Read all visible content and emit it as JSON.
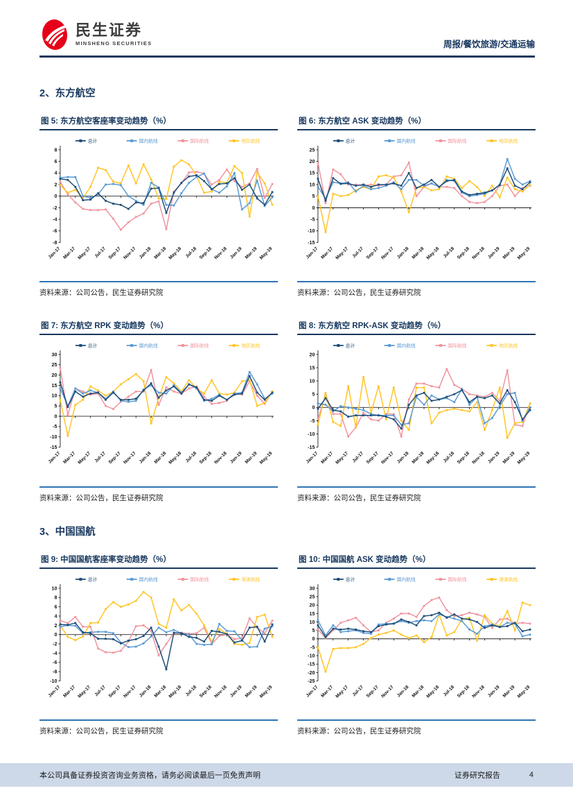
{
  "header": {
    "brand": "民生证券",
    "brand_sub": "MINSHENG SECURITIES",
    "tagline": "周报/餐饮旅游/交通运输"
  },
  "sections": [
    {
      "title": "2、东方航空"
    },
    {
      "title": "3、中国国航"
    }
  ],
  "source_label": "资料来源：公司公告，民生证券研究院",
  "footer": {
    "left": "本公司具备证券投资咨询业务资格，请务必阅读最后一页免责声明",
    "right": "证券研究报告",
    "page": "4"
  },
  "colors": {
    "accent_navy": "#17375E",
    "rule_blue": "#2E74B5",
    "logo_red": "#E60019",
    "footer_bg": "#CDD8E8"
  },
  "months": [
    "Jan-17",
    "Feb-17",
    "Mar-17",
    "Apr-17",
    "May-17",
    "Jun-17",
    "Jul-17",
    "Aug-17",
    "Sep-17",
    "Oct-17",
    "Nov-17",
    "Dec-17",
    "Jan-18",
    "Feb-18",
    "Mar-18",
    "Apr-18",
    "May-18",
    "Jun-18",
    "Jul-18",
    "Aug-18",
    "Sep-18",
    "Oct-18",
    "Nov-18",
    "Dec-18",
    "Jan-19",
    "Feb-19",
    "Mar-19",
    "Apr-19",
    "May-19"
  ],
  "x_tick_labels": [
    "Jan-17",
    "Mar-17",
    "May-17",
    "Jul-17",
    "Sep-17",
    "Nov-17",
    "Jan-18",
    "Mar-18",
    "May-18",
    "Jul-18",
    "Sep-18",
    "Nov-18",
    "Jan-19",
    "Mar-19",
    "May-19"
  ],
  "chart_data": [
    {
      "type": "line",
      "title": "图 5: 东方航空客座率变动趋势（%）",
      "ylim": [
        -8,
        8
      ],
      "ytick_step": 2,
      "grid": false,
      "legend_position": "top",
      "series": [
        {
          "name": "总计",
          "color": "#1F4E79",
          "values": [
            3.0,
            2.8,
            1.6,
            -0.7,
            -0.6,
            0.5,
            -0.8,
            -1.3,
            -1.5,
            -2.2,
            -1.1,
            -1.2,
            1.3,
            1.4,
            -2.9,
            0.6,
            2.3,
            3.4,
            3.6,
            2.6,
            1.2,
            2.1,
            2.2,
            3.1,
            1.1,
            2.0,
            -0.4,
            -1.5,
            0.7
          ]
        },
        {
          "name": "国内航线",
          "color": "#5B9BD5",
          "values": [
            3.2,
            3.3,
            3.3,
            0.0,
            -0.3,
            0.3,
            2.0,
            2.1,
            1.9,
            0.0,
            -0.8,
            -1.5,
            2.3,
            1.5,
            -1.5,
            -1.6,
            0.5,
            2.3,
            3.3,
            3.9,
            1.2,
            0.6,
            1.7,
            4.0,
            -2.3,
            -1.2,
            2.7,
            -1.7,
            -0.2
          ]
        },
        {
          "name": "国际航线",
          "color": "#F1949E",
          "values": [
            2.5,
            0.3,
            -1.1,
            -2.2,
            -2.4,
            -2.4,
            -2.3,
            -3.9,
            -5.8,
            -4.5,
            -3.6,
            -3.0,
            -1.3,
            -0.9,
            -5.7,
            0.8,
            2.2,
            4.1,
            4.2,
            3.9,
            2.0,
            2.8,
            4.6,
            2.6,
            1.6,
            2.2,
            4.7,
            -0.3,
            2.1
          ]
        },
        {
          "name": "地区航线",
          "color": "#FFC527",
          "values": [
            1.9,
            0.6,
            1.1,
            -0.3,
            1.6,
            4.9,
            4.5,
            2.5,
            2.2,
            5.3,
            2.2,
            5.5,
            2.9,
            -0.4,
            -0.5,
            5.1,
            6.2,
            5.5,
            3.5,
            0.6,
            0.8,
            2.5,
            2.3,
            5.2,
            4.0,
            -3.5,
            4.1,
            2.2,
            -1.5
          ]
        }
      ]
    },
    {
      "type": "line",
      "title": "图 6: 东方航空 ASK 变动趋势（%）",
      "ylim": [
        -15,
        25
      ],
      "ytick_step": 5,
      "grid": false,
      "legend_position": "top",
      "series": [
        {
          "name": "总计",
          "color": "#1F4E79",
          "values": [
            12.5,
            3.0,
            12.8,
            10.3,
            10.5,
            9.5,
            10.0,
            9.0,
            10.0,
            10.0,
            10.5,
            9.5,
            15.0,
            8.5,
            10.0,
            12.0,
            9.0,
            11.5,
            12.0,
            7.0,
            5.5,
            6.0,
            6.5,
            7.5,
            9.8,
            17.0,
            9.5,
            8.0,
            11.0
          ]
        },
        {
          "name": "国内航线",
          "color": "#5B9BD5",
          "values": [
            9.0,
            4.0,
            11.0,
            10.5,
            11.0,
            7.0,
            9.5,
            8.0,
            8.5,
            9.5,
            11.0,
            8.0,
            12.0,
            12.0,
            9.5,
            10.5,
            9.0,
            12.0,
            11.5,
            6.5,
            5.0,
            5.5,
            6.0,
            7.5,
            10.0,
            21.0,
            12.5,
            10.0,
            11.5
          ]
        },
        {
          "name": "国际航线",
          "color": "#F1949E",
          "values": [
            19.5,
            2.0,
            16.5,
            14.5,
            10.0,
            10.0,
            9.5,
            10.0,
            9.5,
            10.0,
            13.5,
            14.0,
            19.5,
            5.0,
            9.0,
            10.5,
            9.0,
            9.0,
            8.5,
            5.0,
            2.5,
            2.0,
            2.5,
            5.0,
            9.5,
            10.0,
            5.0,
            8.5,
            9.5
          ]
        },
        {
          "name": "地区航线",
          "color": "#FFC527",
          "values": [
            5.0,
            -10.5,
            6.0,
            5.0,
            5.5,
            7.5,
            9.0,
            8.0,
            13.5,
            14.0,
            13.0,
            7.0,
            -2.0,
            8.5,
            9.0,
            7.5,
            8.0,
            13.5,
            12.5,
            8.5,
            11.5,
            9.0,
            5.0,
            9.5,
            4.5,
            13.0,
            8.0,
            7.0,
            10.0
          ]
        }
      ]
    },
    {
      "type": "line",
      "title": "图 7: 东方航空 RPK 变动趋势（%）",
      "ylim": [
        -15,
        30
      ],
      "ytick_step": 5,
      "grid": false,
      "legend_position": "top",
      "series": [
        {
          "name": "总计",
          "color": "#1F4E79",
          "values": [
            16.5,
            4.5,
            12.0,
            9.5,
            11.0,
            11.5,
            8.0,
            11.5,
            8.0,
            8.0,
            8.5,
            12.5,
            16.0,
            9.0,
            12.5,
            14.5,
            11.0,
            15.5,
            14.0,
            8.0,
            7.5,
            10.0,
            8.0,
            10.5,
            11.0,
            19.5,
            11.5,
            8.0,
            11.5
          ]
        },
        {
          "name": "国内航线",
          "color": "#5B9BD5",
          "values": [
            13.5,
            5.0,
            13.5,
            11.0,
            12.5,
            11.5,
            8.5,
            12.0,
            7.5,
            7.0,
            7.5,
            13.0,
            15.0,
            11.5,
            11.0,
            15.0,
            11.5,
            15.5,
            13.5,
            7.5,
            8.5,
            10.5,
            8.0,
            11.0,
            11.5,
            21.5,
            15.5,
            8.5,
            11.0
          ]
        },
        {
          "name": "国际航线",
          "color": "#F1949E",
          "values": [
            23.5,
            0.5,
            13.5,
            12.0,
            10.5,
            11.0,
            5.0,
            3.5,
            7.0,
            9.5,
            12.0,
            12.0,
            22.5,
            5.5,
            14.0,
            12.0,
            11.0,
            13.5,
            14.5,
            9.5,
            6.0,
            6.5,
            7.5,
            11.5,
            10.5,
            17.0,
            10.0,
            6.0,
            12.0
          ]
        },
        {
          "name": "地区航线",
          "color": "#FFC527",
          "values": [
            8.0,
            -9.5,
            5.5,
            8.0,
            14.5,
            12.5,
            10.0,
            12.0,
            15.5,
            18.0,
            20.5,
            17.0,
            -3.5,
            9.0,
            19.0,
            16.0,
            12.0,
            17.5,
            13.5,
            11.0,
            17.5,
            11.0,
            10.5,
            11.5,
            17.0,
            17.5,
            5.0,
            6.5,
            12.0
          ]
        }
      ]
    },
    {
      "type": "line",
      "title": "图 8: 东方航空 RPK-ASK 变动趋势（%）",
      "ylim": [
        -15,
        20
      ],
      "ytick_step": 5,
      "grid": false,
      "legend_position": "top",
      "series": [
        {
          "name": "总计",
          "color": "#1F4E79",
          "values": [
            -0.5,
            3.5,
            -1.0,
            -1.5,
            -3.5,
            -3.0,
            -3.0,
            -3.0,
            -3.0,
            -3.5,
            -4.5,
            -8.0,
            1.0,
            4.5,
            5.5,
            2.5,
            3.0,
            4.0,
            5.0,
            6.5,
            2.0,
            4.0,
            3.5,
            4.5,
            1.5,
            6.5,
            2.0,
            -4.5,
            -1.0
          ]
        },
        {
          "name": "国内航线",
          "color": "#5B9BD5",
          "values": [
            1.5,
            1.0,
            -1.5,
            0.5,
            0.0,
            -0.5,
            -1.0,
            -2.5,
            -3.0,
            -3.0,
            -3.0,
            -6.5,
            -6.0,
            4.0,
            1.0,
            4.5,
            3.0,
            3.5,
            2.0,
            7.0,
            1.0,
            4.0,
            -6.0,
            -4.0,
            0.5,
            5.0,
            5.5,
            -5.0,
            0.0
          ]
        },
        {
          "name": "国际航线",
          "color": "#F1949E",
          "values": [
            -4.5,
            5.0,
            -2.5,
            -2.5,
            -11.0,
            -7.5,
            -2.0,
            -4.5,
            -5.0,
            -2.5,
            -2.5,
            -11.0,
            3.0,
            9.0,
            9.0,
            8.0,
            7.5,
            14.5,
            8.5,
            7.0,
            5.0,
            4.5,
            4.0,
            5.5,
            2.5,
            14.0,
            -6.5,
            -7.0,
            1.5
          ]
        },
        {
          "name": "地区航线",
          "color": "#FFC527",
          "values": [
            -6.5,
            5.5,
            -5.5,
            -7.0,
            8.0,
            -7.5,
            11.5,
            -2.0,
            8.0,
            -4.5,
            7.5,
            -5.0,
            -8.5,
            7.5,
            7.5,
            -6.0,
            -2.0,
            -1.0,
            -0.5,
            -1.0,
            -1.5,
            2.0,
            -8.5,
            -1.0,
            7.5,
            -11.5,
            -6.0,
            -5.5,
            1.5
          ]
        }
      ]
    },
    {
      "type": "line",
      "title": "图 9: 中国国航客座率变动趋势（%）",
      "ylim": [
        -10,
        10
      ],
      "ytick_step": 2,
      "grid": false,
      "legend_position": "top",
      "series": [
        {
          "name": "总计",
          "color": "#1F4E79",
          "values": [
            2.2,
            2.1,
            2.5,
            0.5,
            0.3,
            -0.9,
            -0.9,
            -1.0,
            -1.9,
            -1.3,
            -1.0,
            -0.3,
            1.5,
            -2.6,
            -7.5,
            0.4,
            0.3,
            -0.5,
            -0.7,
            -1.5,
            0.8,
            0.6,
            0.1,
            -1.7,
            -1.3,
            1.5,
            1.7,
            -1.5,
            2.2
          ]
        },
        {
          "name": "国内航线",
          "color": "#5B9BD5",
          "values": [
            1.7,
            2.0,
            1.9,
            0.3,
            0.5,
            0.6,
            0.6,
            0.3,
            -1.7,
            -2.7,
            -2.6,
            -1.9,
            -0.4,
            1.5,
            0.5,
            1.0,
            0.3,
            0.0,
            -2.0,
            -2.2,
            -2.1,
            2.3,
            0.8,
            0.7,
            -1.2,
            -2.7,
            -2.6,
            1.3,
            1.8
          ]
        },
        {
          "name": "国际航线",
          "color": "#F1949E",
          "values": [
            3.0,
            2.5,
            3.8,
            1.7,
            1.7,
            -3.0,
            -3.8,
            -3.9,
            -3.5,
            -1.5,
            1.8,
            2.0,
            0.8,
            -4.5,
            -2.0,
            0.3,
            0.4,
            0.2,
            0.3,
            1.5,
            -2.0,
            -0.3,
            0.0,
            -1.0,
            -0.8,
            3.5,
            1.5,
            0.3,
            3.0
          ]
        },
        {
          "name": "港澳航线",
          "color": "#FFC527",
          "values": [
            2.0,
            -0.5,
            -1.2,
            -0.4,
            2.5,
            2.6,
            5.5,
            7.0,
            6.0,
            6.5,
            7.3,
            9.2,
            8.0,
            2.3,
            1.5,
            7.6,
            5.2,
            6.4,
            4.5,
            2.0,
            -1.5,
            1.2,
            0.2,
            -2.0,
            -2.2,
            -1.8,
            3.8,
            4.3,
            -0.5
          ]
        }
      ]
    },
    {
      "type": "line",
      "title": "图 10: 中国国航 ASK 变动趋势（%）",
      "ylim": [
        -25,
        30
      ],
      "ytick_step": 5,
      "grid": false,
      "legend_position": "top",
      "series": [
        {
          "name": "总计",
          "color": "#1F4E79",
          "values": [
            8.0,
            1.0,
            6.0,
            5.5,
            6.0,
            5.5,
            4.5,
            4.0,
            7.5,
            8.5,
            9.0,
            11.5,
            10.0,
            8.0,
            13.5,
            14.0,
            15.5,
            12.5,
            14.5,
            12.0,
            11.5,
            10.0,
            6.5,
            8.0,
            7.0,
            7.5,
            9.5,
            4.5,
            5.5
          ]
        },
        {
          "name": "国内航线",
          "color": "#5B9BD5",
          "values": [
            11.0,
            2.0,
            8.0,
            4.0,
            4.5,
            5.0,
            3.5,
            3.0,
            8.5,
            9.0,
            9.0,
            10.5,
            9.5,
            10.5,
            11.0,
            10.5,
            14.5,
            13.0,
            12.0,
            10.5,
            5.5,
            3.0,
            7.5,
            8.5,
            7.0,
            9.5,
            9.0,
            1.5,
            2.5
          ]
        },
        {
          "name": "国际航线",
          "color": "#F1949E",
          "values": [
            5.5,
            0.5,
            5.0,
            9.5,
            11.0,
            12.5,
            8.0,
            4.0,
            5.0,
            9.5,
            12.0,
            15.0,
            15.0,
            13.0,
            19.5,
            23.0,
            24.5,
            17.0,
            13.5,
            14.0,
            15.5,
            14.5,
            13.0,
            6.5,
            11.5,
            12.0,
            9.0,
            9.5,
            9.0
          ]
        },
        {
          "name": "港澳航线",
          "color": "#FFC527",
          "values": [
            -5.0,
            -19.5,
            -6.0,
            -5.5,
            -5.5,
            -5.0,
            -3.0,
            0.5,
            2.5,
            3.5,
            5.0,
            2.5,
            0.5,
            2.0,
            -2.0,
            1.0,
            14.5,
            2.0,
            4.0,
            11.5,
            12.5,
            -1.0,
            14.0,
            9.0,
            7.5,
            16.5,
            5.0,
            21.5,
            20.0
          ]
        }
      ]
    }
  ]
}
